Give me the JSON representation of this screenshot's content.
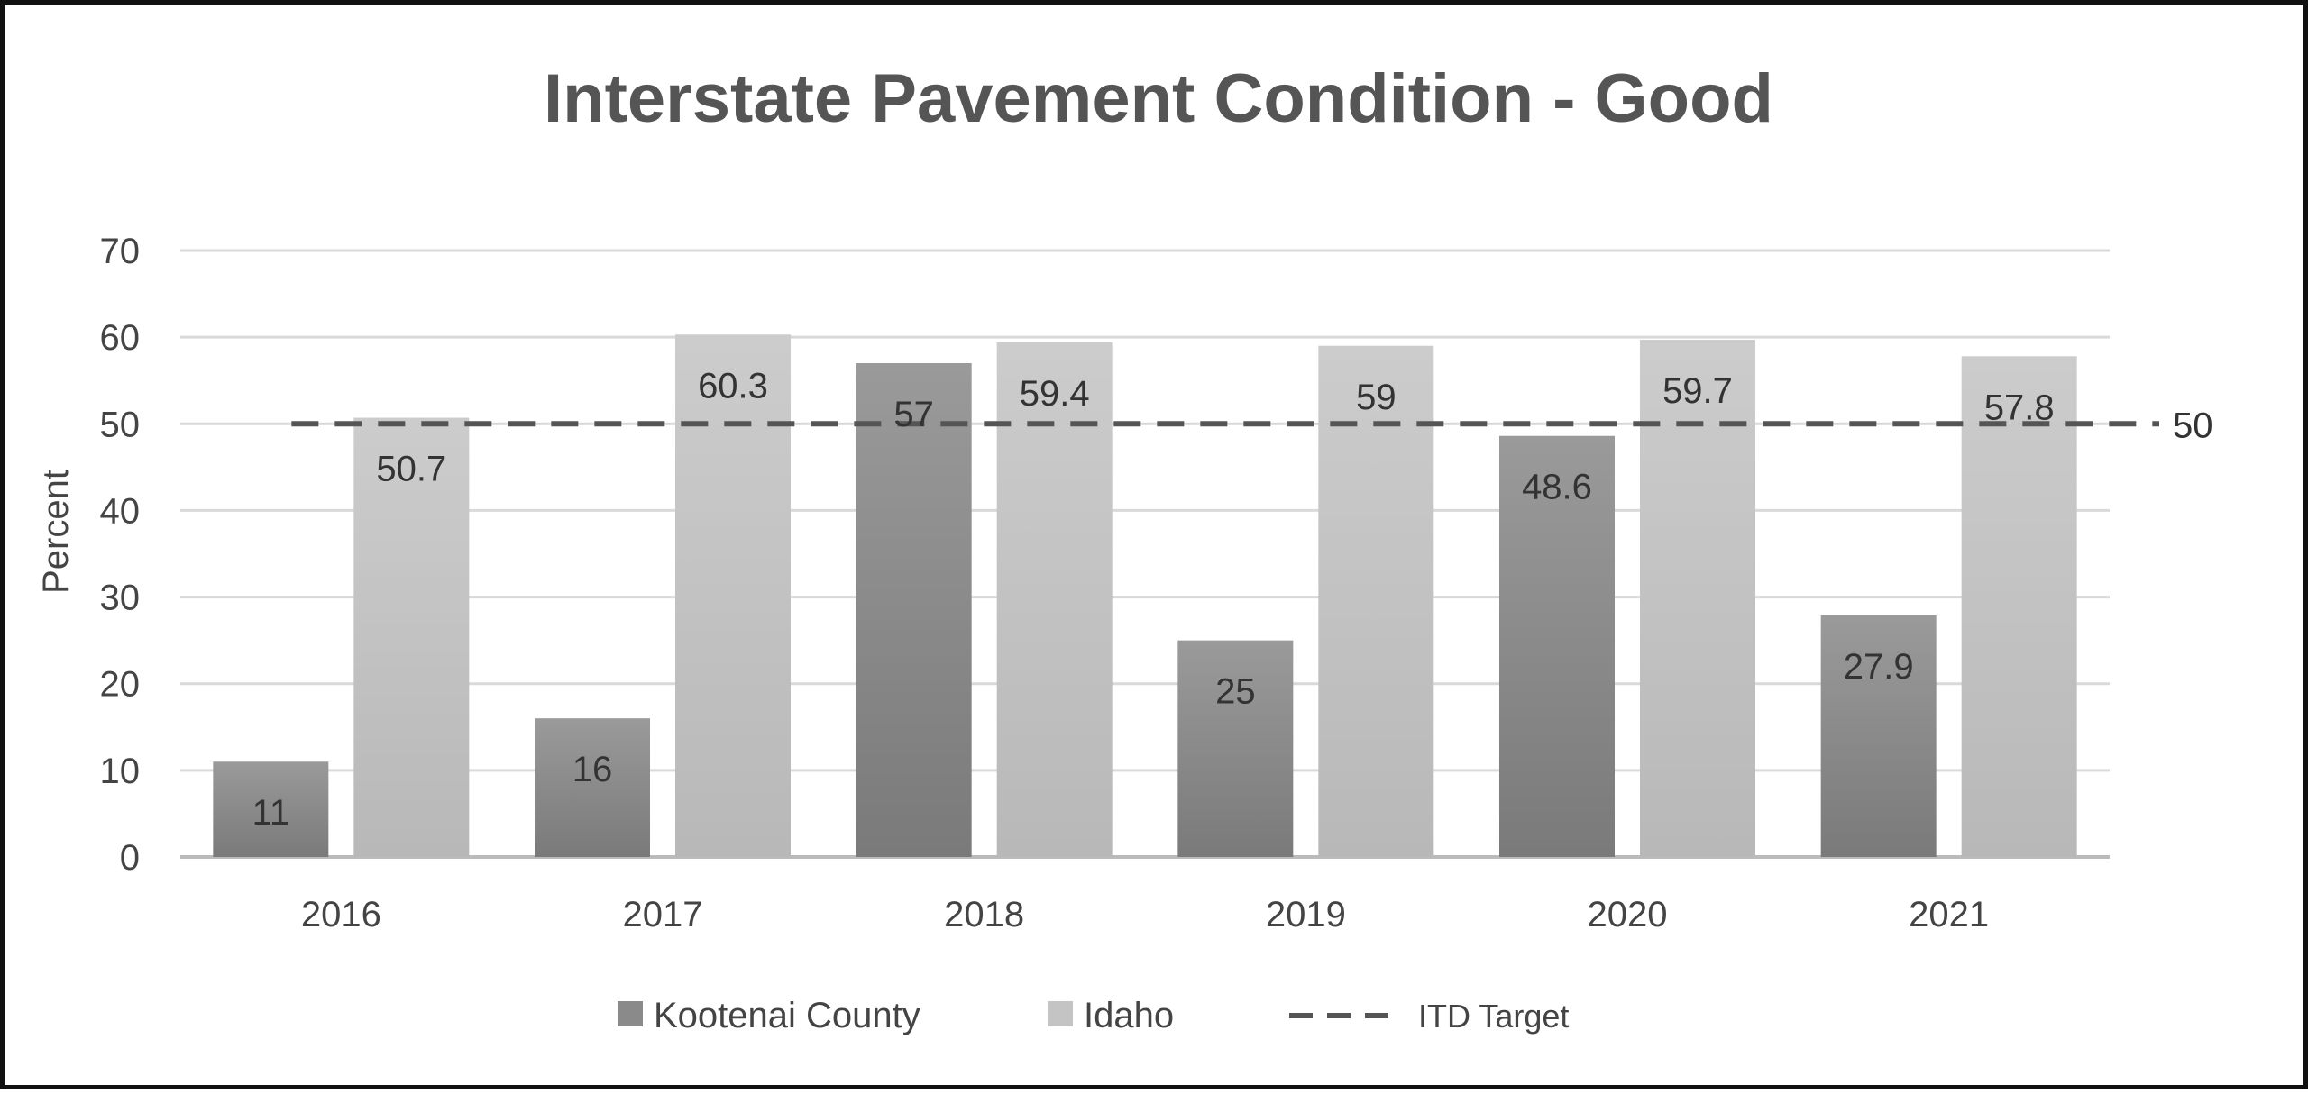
{
  "chart_data": {
    "type": "bar",
    "title": "Interstate Pavement Condition - Good",
    "xlabel": "",
    "ylabel": "Percent",
    "ylim": [
      0,
      70
    ],
    "yticks": [
      "0",
      "10",
      "20",
      "30",
      "40",
      "50",
      "60",
      "70"
    ],
    "categories": [
      "2016",
      "2017",
      "2018",
      "2019",
      "2020",
      "2021"
    ],
    "series": [
      {
        "name": "Kootenai County",
        "values": [
          11,
          16,
          57,
          25,
          48.6,
          27.9
        ],
        "labels": [
          "11",
          "16",
          "57",
          "25",
          "48.6",
          "27.9"
        ],
        "color": "#8a8a8a"
      },
      {
        "name": "Idaho",
        "values": [
          50.7,
          60.3,
          59.4,
          59,
          59.7,
          57.8
        ],
        "labels": [
          "50.7",
          "60.3",
          "59.4",
          "59",
          "59.7",
          "57.8"
        ],
        "color": "#c4c4c4"
      }
    ],
    "target": {
      "name": "ITD Target",
      "value": 50,
      "label": "50",
      "style": "dashed",
      "color": "#555555"
    },
    "grid": true,
    "legend_position": "bottom"
  }
}
